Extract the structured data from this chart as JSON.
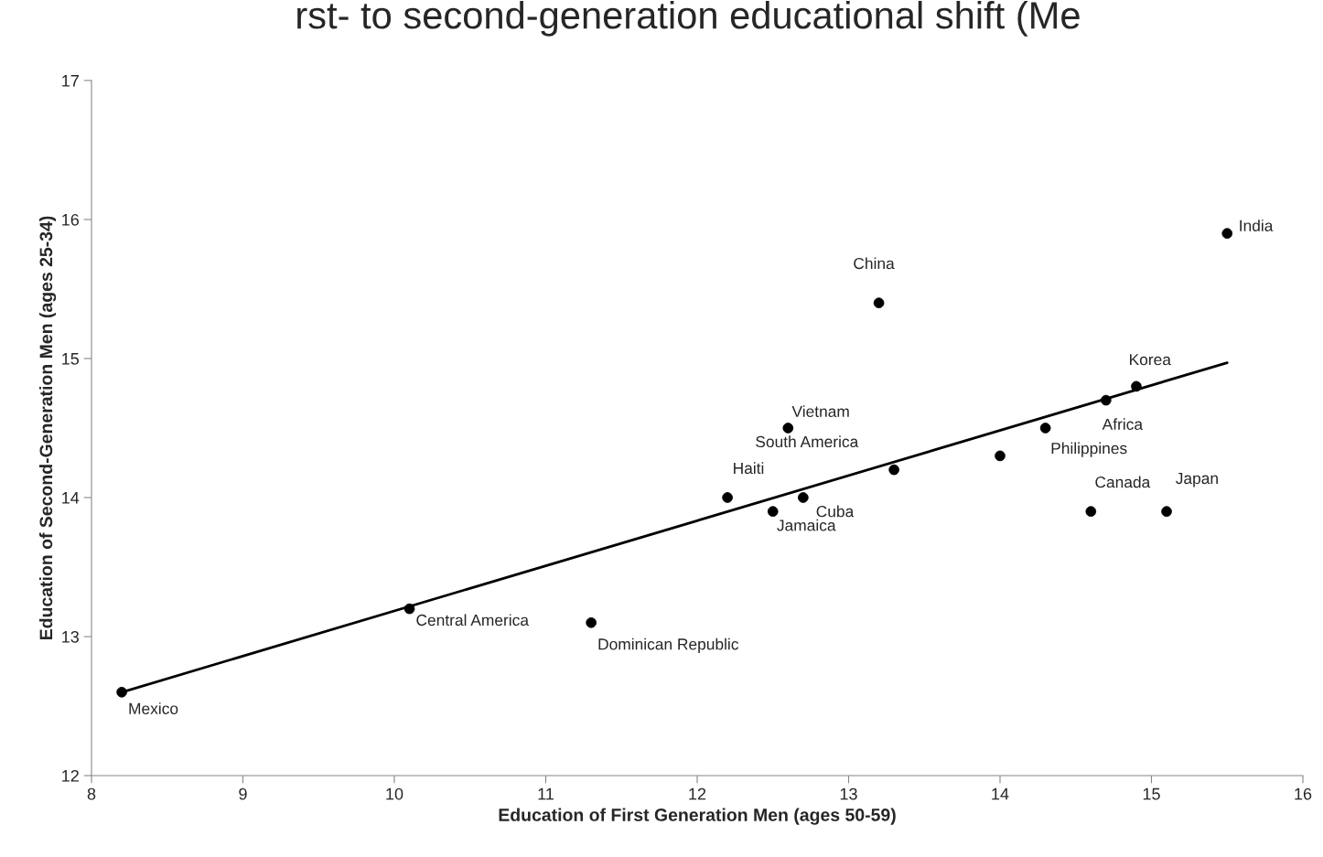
{
  "chart_data": {
    "type": "scatter",
    "title": "rst- to second-generation educational shift (Me",
    "xlabel": "Education of First Generation Men (ages 50-59)",
    "ylabel": "Education of Second-Generation Men (ages 25-34)",
    "series": [
      {
        "color": "#000000",
        "marker": "circle",
        "x": [
          8.2,
          10.1,
          11.3,
          12.2,
          12.5,
          12.7,
          12.6,
          13.3,
          14.0,
          14.3,
          14.7,
          14.9,
          14.6,
          15.1,
          13.2,
          15.5
        ],
        "values": [
          12.6,
          13.2,
          13.1,
          14.0,
          13.9,
          14.0,
          14.5,
          14.2,
          14.3,
          14.5,
          14.7,
          14.8,
          13.9,
          13.9,
          15.4,
          15.9
        ]
      },
      {
        "type": "line",
        "color": "#000000",
        "marker": "none",
        "line_style": "solid",
        "x": [
          8.2,
          15.5
        ],
        "values": [
          12.6,
          14.97
        ]
      }
    ],
    "annotations": [
      {
        "text": "Mexico",
        "x": 8.2,
        "y": 12.6
      },
      {
        "text": "Central America",
        "x": 10.1,
        "y": 13.2
      },
      {
        "text": "Dominican Republic",
        "x": 11.3,
        "y": 13.1
      },
      {
        "text": "Haiti",
        "x": 12.2,
        "y": 14.0
      },
      {
        "text": "Jamaica",
        "x": 12.5,
        "y": 13.9
      },
      {
        "text": "Cuba",
        "x": 12.7,
        "y": 14.0
      },
      {
        "text": "Vietnam",
        "x": 12.6,
        "y": 14.5
      },
      {
        "text": "South America",
        "x": 13.3,
        "y": 14.2
      },
      {
        "text": "Philippines",
        "x": 14.3,
        "y": 14.5
      },
      {
        "text": "Africa",
        "x": 14.7,
        "y": 14.7
      },
      {
        "text": "Korea",
        "x": 14.9,
        "y": 14.8
      },
      {
        "text": "Canada",
        "x": 14.6,
        "y": 13.9
      },
      {
        "text": "Japan",
        "x": 15.1,
        "y": 13.9
      },
      {
        "text": "China",
        "x": 13.2,
        "y": 15.4
      },
      {
        "text": "India",
        "x": 15.5,
        "y": 15.9
      }
    ],
    "xlim": [
      8,
      16
    ],
    "xticks": [
      8,
      9,
      10,
      11,
      12,
      13,
      14,
      15,
      16
    ],
    "ylim": [
      12,
      17
    ],
    "yticks": [
      12,
      13,
      14,
      15,
      16,
      17
    ],
    "grid": false
  }
}
